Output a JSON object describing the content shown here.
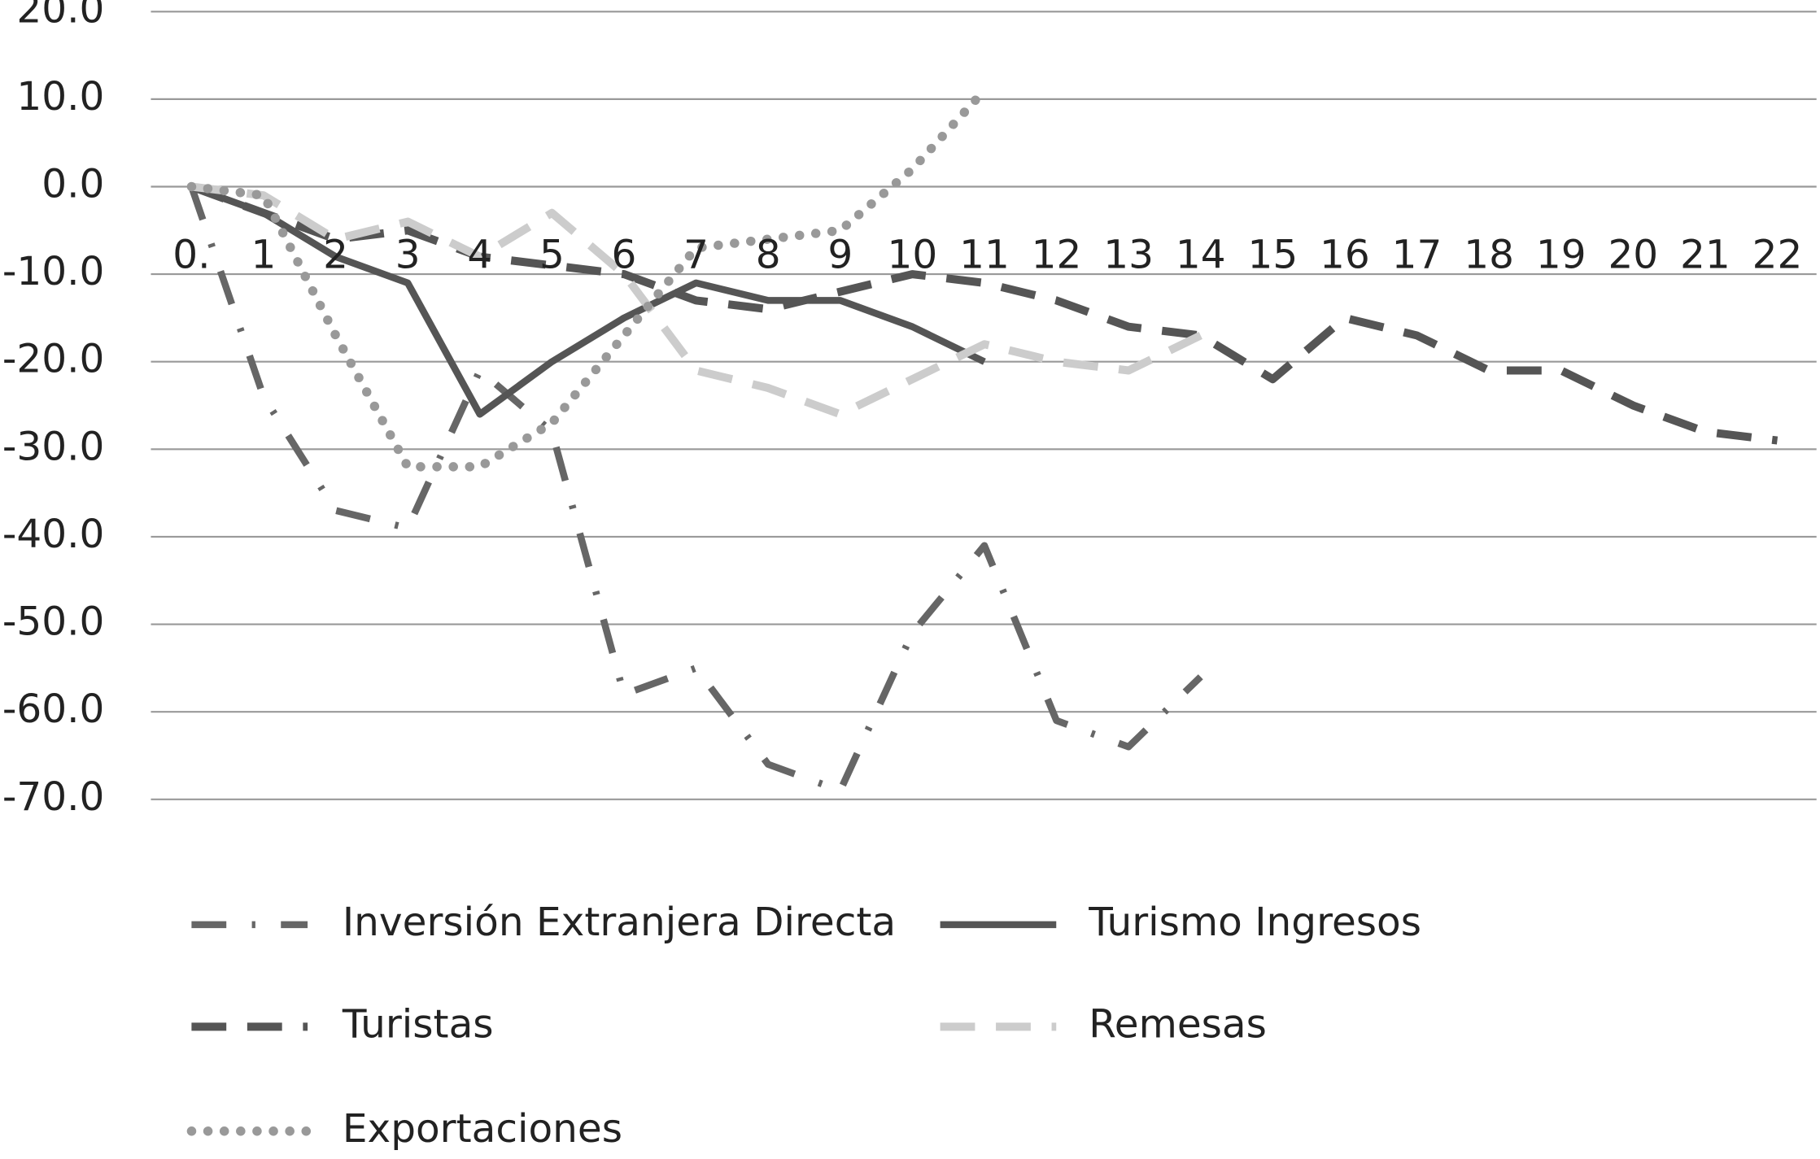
{
  "chart_data": {
    "type": "line",
    "categories": [
      "0.",
      "1",
      "2",
      "3",
      "4",
      "5",
      "6",
      "7",
      "8",
      "9",
      "10",
      "11",
      "12",
      "13",
      "14",
      "15",
      "16",
      "17",
      "18",
      "19",
      "20",
      "21",
      "22"
    ],
    "ylim": [
      -70,
      20
    ],
    "yticks": [
      {
        "value": 20,
        "label": "20.0"
      },
      {
        "value": 10,
        "label": "10.0"
      },
      {
        "value": 0,
        "label": "0.0"
      },
      {
        "value": -10,
        "label": "-10.0"
      },
      {
        "value": -20,
        "label": "-20.0"
      },
      {
        "value": -30,
        "label": "-30.0"
      },
      {
        "value": -40,
        "label": "-40.0"
      },
      {
        "value": -50,
        "label": "-50.0"
      },
      {
        "value": -60,
        "label": "-60.0"
      },
      {
        "value": -70,
        "label": "-70.0"
      }
    ],
    "grid": true,
    "series": [
      {
        "name": "Inversión Extranjera Directa",
        "color": "#666666",
        "line_style": "dash-dot",
        "values": [
          0,
          -24,
          -37,
          -39,
          -21,
          -28,
          -58,
          -55,
          -66,
          -69,
          -51,
          -41,
          -61,
          -64,
          -56,
          null,
          null,
          null,
          null,
          null,
          null,
          null,
          null
        ]
      },
      {
        "name": "Turismo Ingresos",
        "color": "#555555",
        "line_style": "solid",
        "values": [
          0,
          -3,
          -8,
          -11,
          -26,
          -20,
          -15,
          -11,
          -13,
          -13,
          -16,
          -20,
          null,
          null,
          null,
          null,
          null,
          null,
          null,
          null,
          null,
          null,
          null
        ]
      },
      {
        "name": "Turistas",
        "color": "#555555",
        "line_style": "dashed",
        "values": [
          0,
          -3,
          -6,
          -5,
          -8,
          -9,
          -10,
          -13,
          -14,
          -12,
          -10,
          -11,
          -13,
          -16,
          -17,
          -22,
          -15,
          -17,
          -21,
          -21,
          -25,
          -28,
          -29
        ]
      },
      {
        "name": "Remesas",
        "color": "#cccccc",
        "line_style": "dashed",
        "values": [
          0,
          -1,
          -6,
          -4,
          -8,
          -3,
          -10,
          -21,
          -23,
          -26,
          -22,
          -18,
          -20,
          -21,
          -17,
          null,
          null,
          null,
          null,
          null,
          null,
          null,
          null
        ]
      },
      {
        "name": "Exportaciones",
        "color": "#999999",
        "line_style": "dotted",
        "values": [
          0,
          -1,
          -17,
          -32,
          -32,
          -27,
          -17,
          -7,
          -6,
          -5,
          2,
          11,
          null,
          null,
          null,
          null,
          null,
          null,
          null,
          null,
          null,
          null,
          null
        ]
      }
    ]
  }
}
